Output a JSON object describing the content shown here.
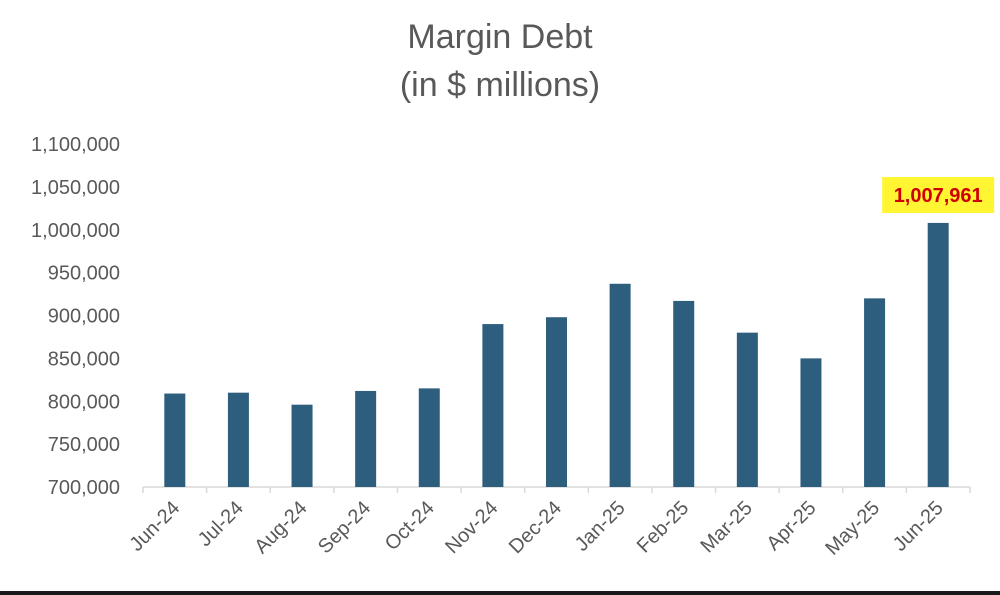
{
  "chart_data": {
    "type": "bar",
    "title": "Margin Debt",
    "subtitle": "(in $ millions)",
    "xlabel": "",
    "ylabel": "",
    "categories": [
      "Jun-24",
      "Jul-24",
      "Aug-24",
      "Sep-24",
      "Oct-24",
      "Nov-24",
      "Dec-24",
      "Jan-25",
      "Feb-25",
      "Mar-25",
      "Apr-25",
      "May-25",
      "Jun-25"
    ],
    "values": [
      809000,
      810000,
      796000,
      812000,
      815000,
      890000,
      898000,
      937000,
      917000,
      880000,
      850000,
      920000,
      1007961
    ],
    "ylim": [
      700000,
      1100000
    ],
    "yticks": [
      "700,000",
      "750,000",
      "800,000",
      "850,000",
      "900,000",
      "950,000",
      "1,000,000",
      "1,050,000",
      "1,100,000"
    ],
    "ytick_values": [
      700000,
      750000,
      800000,
      850000,
      900000,
      950000,
      1000000,
      1050000,
      1100000
    ],
    "grid": false,
    "legend": "none",
    "bar_color": "#2e5e7e",
    "annotation": {
      "text": "1,007,961",
      "category": "Jun-25",
      "text_color": "#d00000",
      "background": "#fff533"
    }
  }
}
